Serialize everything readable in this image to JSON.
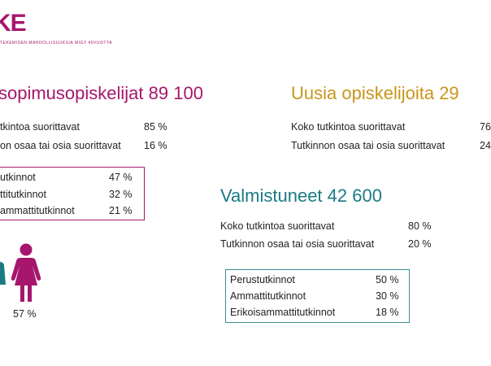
{
  "logo": {
    "text": "KE",
    "subtitle": "TEKEMISEN MAHDOLLISUUKSIA MIGY 40VUOTTA",
    "color": "#a6166d"
  },
  "colors": {
    "magenta": "#a6166d",
    "gold": "#c8961a",
    "teal": "#1c7a84"
  },
  "oppisopimus": {
    "heading": "sopimusopiskelijat 89 100",
    "rows": [
      {
        "label": "tkintoa suorittavat",
        "value": "85 %"
      },
      {
        "label": "on osaa tai osia suorittavat",
        "value": "16 %"
      }
    ],
    "box": [
      {
        "label": "utkinnot",
        "value": "47 %"
      },
      {
        "label": "ttitutkinnot",
        "value": "32 %"
      },
      {
        "label": "ammattitutkinnot",
        "value": "21 %"
      }
    ],
    "gender": {
      "female_pct": "57 %",
      "icons": [
        "person-partial-icon",
        "female-person-icon"
      ]
    }
  },
  "uusia": {
    "heading": "Uusia opiskelijoita 29",
    "rows": [
      {
        "label": "Koko tutkintoa suorittavat",
        "value": "76"
      },
      {
        "label": "Tutkinnon osaa tai osia suorittavat",
        "value": "24"
      }
    ]
  },
  "valmistuneet": {
    "heading": "Valmistuneet 42 600",
    "rows": [
      {
        "label": "Koko tutkintoa suorittavat",
        "value": "80 %"
      },
      {
        "label": "Tutkinnon osaa tai osia suorittavat",
        "value": "20 %"
      }
    ],
    "box": [
      {
        "label": "Perustutkinnot",
        "value": "50 %"
      },
      {
        "label": "Ammattitutkinnot",
        "value": "30 %"
      },
      {
        "label": "Erikoisammattitutkinnot",
        "value": "18 %"
      }
    ]
  }
}
